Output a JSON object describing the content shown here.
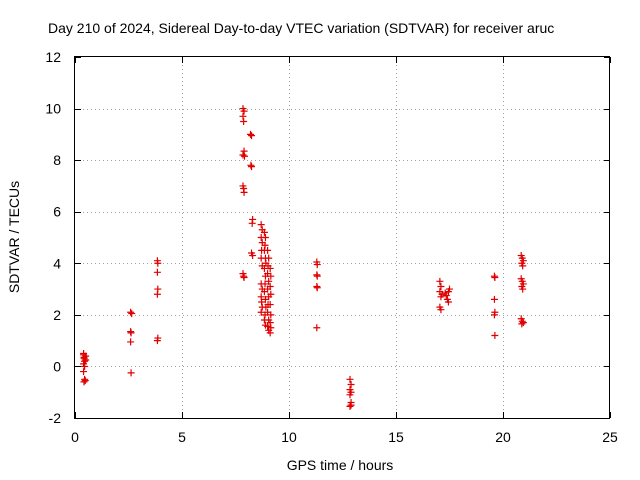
{
  "chart_data": {
    "type": "scatter",
    "title": "Day 210 of 2024, Sidereal Day-to-day VTEC variation (SDTVAR) for receiver aruc",
    "xlabel": "GPS time / hours",
    "ylabel": "SDTVAR / TECUs",
    "xlim": [
      0,
      25
    ],
    "ylim": [
      -2,
      12
    ],
    "xticks": [
      0,
      5,
      10,
      15,
      20,
      25
    ],
    "yticks": [
      -2,
      0,
      2,
      4,
      6,
      8,
      10,
      12
    ],
    "grid": true,
    "marker": "plus",
    "color": "#e00000",
    "series": [
      {
        "name": "SDTVAR",
        "points": [
          [
            0.4,
            0.5
          ],
          [
            0.4,
            0.45
          ],
          [
            0.42,
            0.35
          ],
          [
            0.43,
            0.3
          ],
          [
            0.45,
            0.2
          ],
          [
            0.4,
            0.1
          ],
          [
            0.45,
            0.0
          ],
          [
            0.4,
            -0.2
          ],
          [
            0.45,
            -0.5
          ],
          [
            0.42,
            -0.6
          ],
          [
            0.48,
            -0.55
          ],
          [
            0.5,
            0.4
          ],
          [
            0.5,
            0.25
          ],
          [
            2.6,
            2.1
          ],
          [
            2.65,
            2.05
          ],
          [
            2.6,
            1.35
          ],
          [
            2.62,
            1.3
          ],
          [
            2.6,
            0.95
          ],
          [
            2.62,
            -0.25
          ],
          [
            3.85,
            4.1
          ],
          [
            3.87,
            4.0
          ],
          [
            3.85,
            3.65
          ],
          [
            3.87,
            3.0
          ],
          [
            3.85,
            2.8
          ],
          [
            3.87,
            1.1
          ],
          [
            3.85,
            1.0
          ],
          [
            7.85,
            10.0
          ],
          [
            7.9,
            9.9
          ],
          [
            7.85,
            9.7
          ],
          [
            7.88,
            9.5
          ],
          [
            7.9,
            8.35
          ],
          [
            7.85,
            8.2
          ],
          [
            7.92,
            8.15
          ],
          [
            7.85,
            7.0
          ],
          [
            7.88,
            6.9
          ],
          [
            7.9,
            6.75
          ],
          [
            7.85,
            3.6
          ],
          [
            7.88,
            3.5
          ],
          [
            7.9,
            3.45
          ],
          [
            8.2,
            9.0
          ],
          [
            8.25,
            8.95
          ],
          [
            8.22,
            7.8
          ],
          [
            8.25,
            7.75
          ],
          [
            8.3,
            5.7
          ],
          [
            8.28,
            5.55
          ],
          [
            8.25,
            4.4
          ],
          [
            8.3,
            4.3
          ],
          [
            8.7,
            5.5
          ],
          [
            8.75,
            5.3
          ],
          [
            8.7,
            5.0
          ],
          [
            8.75,
            4.8
          ],
          [
            8.72,
            4.5
          ],
          [
            8.7,
            4.2
          ],
          [
            8.75,
            3.9
          ],
          [
            8.7,
            3.2
          ],
          [
            8.75,
            3.0
          ],
          [
            8.7,
            2.7
          ],
          [
            8.72,
            2.5
          ],
          [
            8.75,
            2.3
          ],
          [
            8.7,
            2.1
          ],
          [
            8.85,
            5.2
          ],
          [
            8.9,
            5.0
          ],
          [
            8.88,
            4.7
          ],
          [
            8.85,
            4.5
          ],
          [
            8.9,
            4.2
          ],
          [
            8.92,
            4.0
          ],
          [
            8.85,
            3.8
          ],
          [
            8.9,
            3.5
          ],
          [
            8.88,
            3.2
          ],
          [
            8.85,
            2.9
          ],
          [
            8.9,
            2.6
          ],
          [
            8.92,
            2.3
          ],
          [
            8.88,
            2.0
          ],
          [
            8.85,
            1.8
          ],
          [
            8.9,
            1.6
          ],
          [
            9.0,
            4.5
          ],
          [
            9.05,
            4.2
          ],
          [
            9.02,
            3.9
          ],
          [
            9.0,
            3.6
          ],
          [
            9.05,
            3.3
          ],
          [
            9.0,
            3.0
          ],
          [
            9.05,
            2.7
          ],
          [
            9.02,
            2.4
          ],
          [
            9.0,
            2.1
          ],
          [
            9.05,
            1.8
          ],
          [
            9.0,
            1.55
          ],
          [
            9.05,
            1.4
          ],
          [
            9.12,
            3.8
          ],
          [
            9.15,
            3.5
          ],
          [
            9.12,
            3.1
          ],
          [
            9.15,
            2.8
          ],
          [
            9.12,
            2.4
          ],
          [
            9.15,
            2.0
          ],
          [
            9.12,
            1.7
          ],
          [
            9.15,
            1.5
          ],
          [
            9.12,
            1.3
          ],
          [
            11.3,
            4.05
          ],
          [
            11.32,
            3.95
          ],
          [
            11.3,
            3.55
          ],
          [
            11.32,
            3.5
          ],
          [
            11.3,
            3.1
          ],
          [
            11.32,
            3.05
          ],
          [
            11.3,
            1.5
          ],
          [
            12.85,
            -0.5
          ],
          [
            12.9,
            -0.7
          ],
          [
            12.85,
            -0.9
          ],
          [
            12.9,
            -1.0
          ],
          [
            12.85,
            -1.1
          ],
          [
            12.9,
            -1.4
          ],
          [
            12.85,
            -1.55
          ],
          [
            12.9,
            -1.5
          ],
          [
            17.05,
            3.3
          ],
          [
            17.1,
            3.1
          ],
          [
            17.05,
            2.9
          ],
          [
            17.15,
            2.8
          ],
          [
            17.1,
            2.7
          ],
          [
            17.05,
            2.3
          ],
          [
            17.1,
            2.2
          ],
          [
            17.3,
            2.85
          ],
          [
            17.35,
            2.75
          ],
          [
            17.4,
            2.6
          ],
          [
            17.45,
            2.9
          ],
          [
            17.5,
            3.0
          ],
          [
            17.45,
            2.5
          ],
          [
            19.6,
            3.5
          ],
          [
            19.62,
            3.45
          ],
          [
            19.6,
            2.6
          ],
          [
            19.62,
            2.1
          ],
          [
            19.6,
            2.0
          ],
          [
            19.62,
            1.2
          ],
          [
            20.85,
            4.3
          ],
          [
            20.9,
            4.2
          ],
          [
            20.95,
            4.1
          ],
          [
            20.88,
            4.0
          ],
          [
            20.92,
            3.9
          ],
          [
            20.85,
            3.4
          ],
          [
            20.9,
            3.3
          ],
          [
            20.95,
            3.2
          ],
          [
            20.88,
            3.1
          ],
          [
            20.92,
            3.0
          ],
          [
            20.85,
            1.85
          ],
          [
            20.9,
            1.75
          ],
          [
            20.95,
            1.7
          ],
          [
            20.88,
            1.65
          ]
        ]
      }
    ]
  }
}
